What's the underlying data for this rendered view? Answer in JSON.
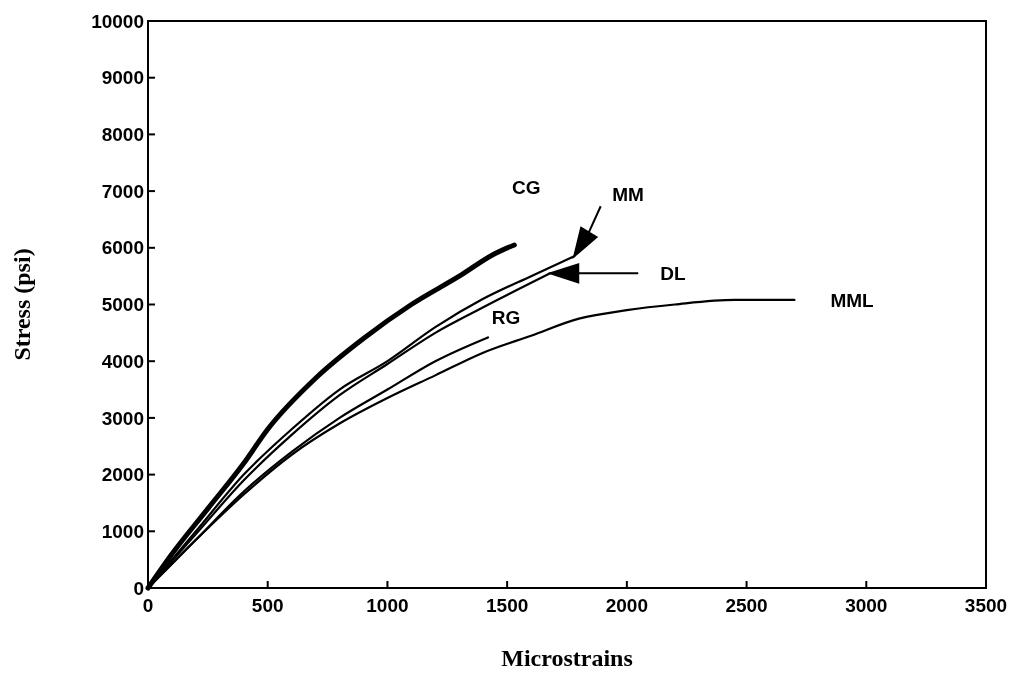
{
  "chart_data": {
    "type": "line",
    "xlabel": "Microstrains",
    "ylabel": "Stress (psi)",
    "xlim": [
      0,
      3500
    ],
    "ylim": [
      0,
      10000
    ],
    "xticks": [
      0,
      500,
      1000,
      1500,
      2000,
      2500,
      3000,
      3500
    ],
    "yticks": [
      0,
      1000,
      2000,
      3000,
      4000,
      5000,
      6000,
      7000,
      8000,
      9000,
      10000
    ],
    "grid": false,
    "marker": "none",
    "line_style": "solid",
    "series": [
      {
        "name": "CG",
        "color": "#000000",
        "x": [
          0,
          100,
          250,
          400,
          500,
          700,
          900,
          1100,
          1300,
          1450,
          1530
        ],
        "values": [
          0,
          600,
          1400,
          2200,
          2800,
          3700,
          4400,
          5000,
          5500,
          5900,
          6050
        ]
      },
      {
        "name": "MM",
        "color": "#000000",
        "x": [
          0,
          200,
          400,
          600,
          800,
          1000,
          1200,
          1400,
          1600,
          1780
        ],
        "values": [
          0,
          1000,
          2000,
          2800,
          3500,
          4000,
          4600,
          5100,
          5500,
          5850
        ]
      },
      {
        "name": "DL",
        "color": "#000000",
        "x": [
          0,
          200,
          400,
          600,
          800,
          1000,
          1200,
          1400,
          1680
        ],
        "values": [
          0,
          950,
          1900,
          2700,
          3400,
          3950,
          4500,
          4950,
          5550
        ]
      },
      {
        "name": "RG",
        "color": "#000000",
        "x": [
          0,
          200,
          400,
          600,
          800,
          1000,
          1200,
          1420
        ],
        "values": [
          0,
          850,
          1700,
          2400,
          3000,
          3500,
          4000,
          4420
        ]
      },
      {
        "name": "MML",
        "color": "#000000",
        "x": [
          0,
          200,
          400,
          600,
          800,
          1000,
          1200,
          1400,
          1600,
          1800,
          2000,
          2200,
          2450,
          2700
        ],
        "values": [
          0,
          850,
          1650,
          2350,
          2900,
          3350,
          3750,
          4150,
          4450,
          4750,
          4900,
          5000,
          5080,
          5080
        ]
      }
    ]
  }
}
